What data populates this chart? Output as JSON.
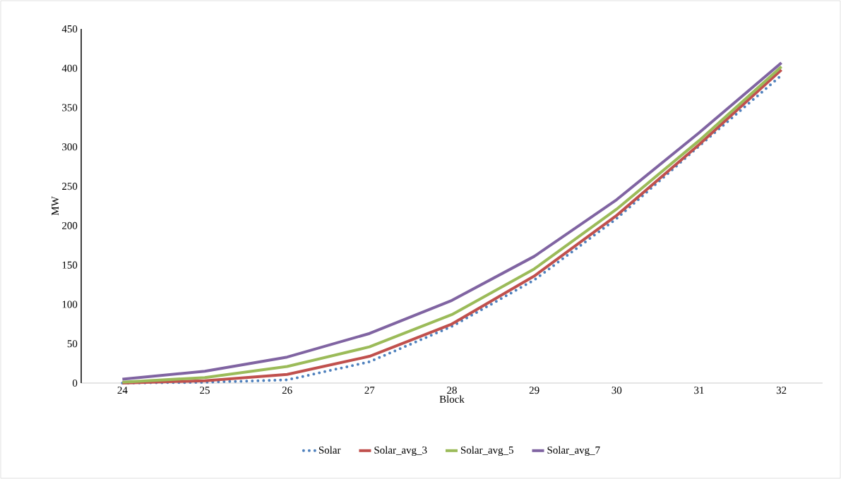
{
  "chart_data": {
    "type": "line",
    "xlabel": "Block",
    "ylabel": "MW",
    "categories": [
      "24",
      "25",
      "26",
      "27",
      "28",
      "29",
      "30",
      "31",
      "32"
    ],
    "ylim": [
      0,
      450
    ],
    "yticks": [
      0,
      50,
      100,
      150,
      200,
      250,
      300,
      350,
      400,
      450
    ],
    "legend": "bottom",
    "marker": "none",
    "series": [
      {
        "name": "Solar",
        "color": "#4f81bd",
        "line_style": "dotted",
        "values": [
          0,
          1,
          4,
          27,
          72,
          131,
          209,
          301,
          391
        ]
      },
      {
        "name": "Solar_avg_3",
        "color": "#c0504d",
        "line_style": "solid",
        "values": [
          0,
          3,
          11,
          34,
          75,
          136,
          213,
          303,
          398
        ]
      },
      {
        "name": "Solar_avg_5",
        "color": "#9bbb59",
        "line_style": "solid",
        "values": [
          1,
          7,
          21,
          46,
          87,
          145,
          221,
          308,
          402
        ]
      },
      {
        "name": "Solar_avg_7",
        "color": "#8064a2",
        "line_style": "solid",
        "values": [
          5,
          15,
          33,
          63,
          105,
          161,
          233,
          318,
          407
        ]
      }
    ]
  }
}
